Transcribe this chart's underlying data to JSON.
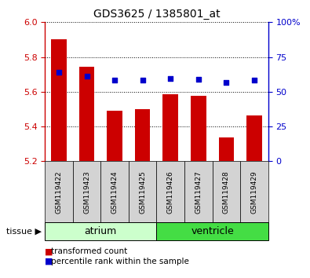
{
  "title": "GDS3625 / 1385801_at",
  "samples": [
    "GSM119422",
    "GSM119423",
    "GSM119424",
    "GSM119425",
    "GSM119426",
    "GSM119427",
    "GSM119428",
    "GSM119429"
  ],
  "bar_values": [
    5.9,
    5.745,
    5.49,
    5.5,
    5.585,
    5.578,
    5.335,
    5.465
  ],
  "dot_values": [
    5.71,
    5.69,
    5.665,
    5.665,
    5.675,
    5.67,
    5.655,
    5.665
  ],
  "bar_bottom": 5.2,
  "ylim": [
    5.2,
    6.0
  ],
  "yticks_left": [
    5.2,
    5.4,
    5.6,
    5.8,
    6.0
  ],
  "yticks_right": [
    0,
    25,
    50,
    75,
    100
  ],
  "right_ylim": [
    0,
    100
  ],
  "bar_color": "#cc0000",
  "dot_color": "#0000cc",
  "tissue_groups": [
    {
      "label": "atrium",
      "indices": [
        0,
        1,
        2,
        3
      ],
      "color": "#ccffcc"
    },
    {
      "label": "ventricle",
      "indices": [
        4,
        5,
        6,
        7
      ],
      "color": "#44dd44"
    }
  ],
  "legend_items": [
    {
      "label": "transformed count",
      "color": "#cc0000"
    },
    {
      "label": "percentile rank within the sample",
      "color": "#0000cc"
    }
  ],
  "background_color": "#ffffff",
  "tick_color_left": "#cc0000",
  "tick_color_right": "#0000cc"
}
